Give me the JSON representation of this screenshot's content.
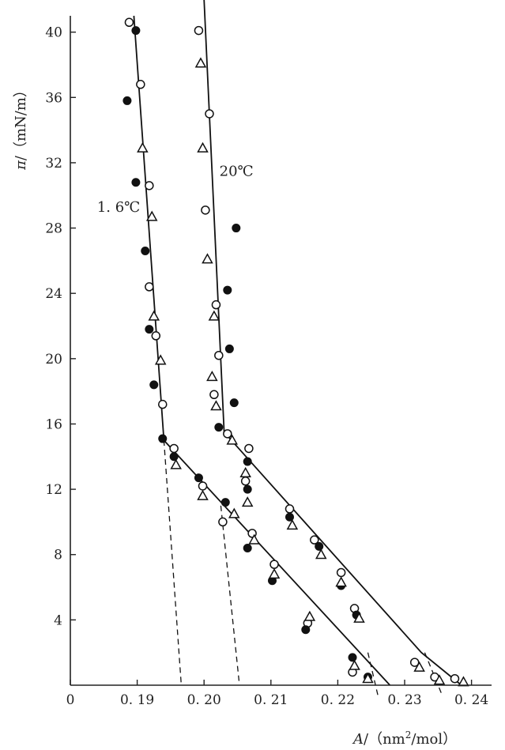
{
  "chart_data": {
    "type": "scatter",
    "ylabel_symbol": "π",
    "ylabel_units": "/（mN/m）",
    "xlabel_symbol": "A",
    "xlabel_units": "/（nm",
    "xlabel_sup": "2",
    "xlabel_tail": "/mol）",
    "xlim": [
      0.18,
      0.243
    ],
    "ylim": [
      0,
      41
    ],
    "x_ticks": [
      {
        "value": 0.18,
        "label": "0"
      },
      {
        "value": 0.19,
        "label": "0. 19"
      },
      {
        "value": 0.2,
        "label": "0. 20"
      },
      {
        "value": 0.21,
        "label": "0. 21"
      },
      {
        "value": 0.22,
        "label": "0. 22"
      },
      {
        "value": 0.23,
        "label": "0. 23"
      },
      {
        "value": 0.24,
        "label": "0. 24"
      }
    ],
    "y_ticks": [
      {
        "value": 4,
        "label": "4"
      },
      {
        "value": 8,
        "label": "8"
      },
      {
        "value": 12,
        "label": "12"
      },
      {
        "value": 16,
        "label": "16"
      },
      {
        "value": 20,
        "label": "20"
      },
      {
        "value": 24,
        "label": "24"
      },
      {
        "value": 28,
        "label": "28"
      },
      {
        "value": 32,
        "label": "32"
      },
      {
        "value": 36,
        "label": "36"
      },
      {
        "value": 40,
        "label": "40"
      }
    ],
    "grid": false,
    "annotations": [
      {
        "text": "1. 6℃",
        "x": 0.184,
        "y": 29.0
      },
      {
        "text": "20℃",
        "x": 0.2023,
        "y": 31.2
      }
    ],
    "lines": [
      {
        "style": "solid",
        "points": [
          [
            0.1895,
            41.0
          ],
          [
            0.194,
            15.0
          ],
          [
            0.2278,
            0.0
          ]
        ]
      },
      {
        "style": "solid",
        "points": [
          [
            0.2,
            42.0
          ],
          [
            0.203,
            15.5
          ],
          [
            0.2325,
            2.0
          ],
          [
            0.2385,
            0.0
          ]
        ]
      },
      {
        "style": "dashed",
        "points": [
          [
            0.194,
            15.0
          ],
          [
            0.1966,
            0.0
          ]
        ]
      },
      {
        "style": "dashed",
        "points": [
          [
            0.2025,
            11.0
          ],
          [
            0.2053,
            0.0
          ]
        ]
      },
      {
        "style": "dashed",
        "points": [
          [
            0.2245,
            2.0
          ],
          [
            0.2265,
            -1.5
          ]
        ]
      },
      {
        "style": "dashed",
        "points": [
          [
            0.233,
            2.0
          ],
          [
            0.2365,
            -1.5
          ]
        ]
      }
    ],
    "series": [
      {
        "marker": "open-circle",
        "points": [
          [
            0.1888,
            40.6
          ],
          [
            0.1905,
            36.8
          ],
          [
            0.1918,
            30.6
          ],
          [
            0.1918,
            24.4
          ],
          [
            0.1928,
            21.4
          ],
          [
            0.1938,
            17.2
          ],
          [
            0.1955,
            14.5
          ],
          [
            0.1998,
            12.2
          ],
          [
            0.1992,
            40.1
          ],
          [
            0.2008,
            35.0
          ],
          [
            0.2002,
            29.1
          ],
          [
            0.2018,
            23.3
          ],
          [
            0.2022,
            20.2
          ],
          [
            0.2015,
            17.8
          ],
          [
            0.2035,
            15.4
          ],
          [
            0.2028,
            10.0
          ],
          [
            0.2067,
            14.5
          ],
          [
            0.2062,
            12.5
          ],
          [
            0.2072,
            9.3
          ],
          [
            0.2105,
            7.4
          ],
          [
            0.2128,
            10.8
          ],
          [
            0.2165,
            8.9
          ],
          [
            0.2205,
            6.9
          ],
          [
            0.2225,
            4.7
          ],
          [
            0.2155,
            3.8
          ],
          [
            0.2222,
            0.8
          ],
          [
            0.2315,
            1.4
          ],
          [
            0.2345,
            0.5
          ],
          [
            0.2375,
            0.4
          ]
        ]
      },
      {
        "marker": "filled-circle",
        "points": [
          [
            0.1898,
            40.1
          ],
          [
            0.1885,
            35.8
          ],
          [
            0.1898,
            30.8
          ],
          [
            0.1912,
            26.6
          ],
          [
            0.1918,
            21.8
          ],
          [
            0.1925,
            18.4
          ],
          [
            0.1938,
            15.1
          ],
          [
            0.1955,
            14.0
          ],
          [
            0.1992,
            12.7
          ],
          [
            0.2048,
            28.0
          ],
          [
            0.2035,
            24.2
          ],
          [
            0.2038,
            20.6
          ],
          [
            0.2045,
            17.3
          ],
          [
            0.2022,
            15.8
          ],
          [
            0.2032,
            11.2
          ],
          [
            0.2065,
            13.7
          ],
          [
            0.2065,
            12.0
          ],
          [
            0.2065,
            8.4
          ],
          [
            0.2102,
            6.4
          ],
          [
            0.2128,
            10.3
          ],
          [
            0.2172,
            8.5
          ],
          [
            0.2205,
            6.1
          ],
          [
            0.2228,
            4.3
          ],
          [
            0.2152,
            3.4
          ],
          [
            0.2222,
            1.7
          ],
          [
            0.2245,
            0.5
          ]
        ]
      },
      {
        "marker": "open-triangle",
        "points": [
          [
            0.1908,
            32.9
          ],
          [
            0.1922,
            28.7
          ],
          [
            0.1925,
            22.6
          ],
          [
            0.1935,
            19.9
          ],
          [
            0.1958,
            13.5
          ],
          [
            0.1998,
            11.6
          ],
          [
            0.1995,
            38.1
          ],
          [
            0.1998,
            32.9
          ],
          [
            0.2005,
            26.1
          ],
          [
            0.2015,
            22.6
          ],
          [
            0.2012,
            18.9
          ],
          [
            0.2018,
            17.1
          ],
          [
            0.2042,
            15.0
          ],
          [
            0.2045,
            10.5
          ],
          [
            0.2062,
            13.0
          ],
          [
            0.2065,
            11.2
          ],
          [
            0.2075,
            8.9
          ],
          [
            0.2105,
            6.8
          ],
          [
            0.2158,
            4.2
          ],
          [
            0.2132,
            9.8
          ],
          [
            0.2175,
            8.0
          ],
          [
            0.2205,
            6.3
          ],
          [
            0.2232,
            4.1
          ],
          [
            0.2225,
            1.2
          ],
          [
            0.2245,
            0.4
          ],
          [
            0.2322,
            1.1
          ],
          [
            0.2352,
            0.3
          ],
          [
            0.2388,
            0.2
          ]
        ]
      }
    ]
  }
}
